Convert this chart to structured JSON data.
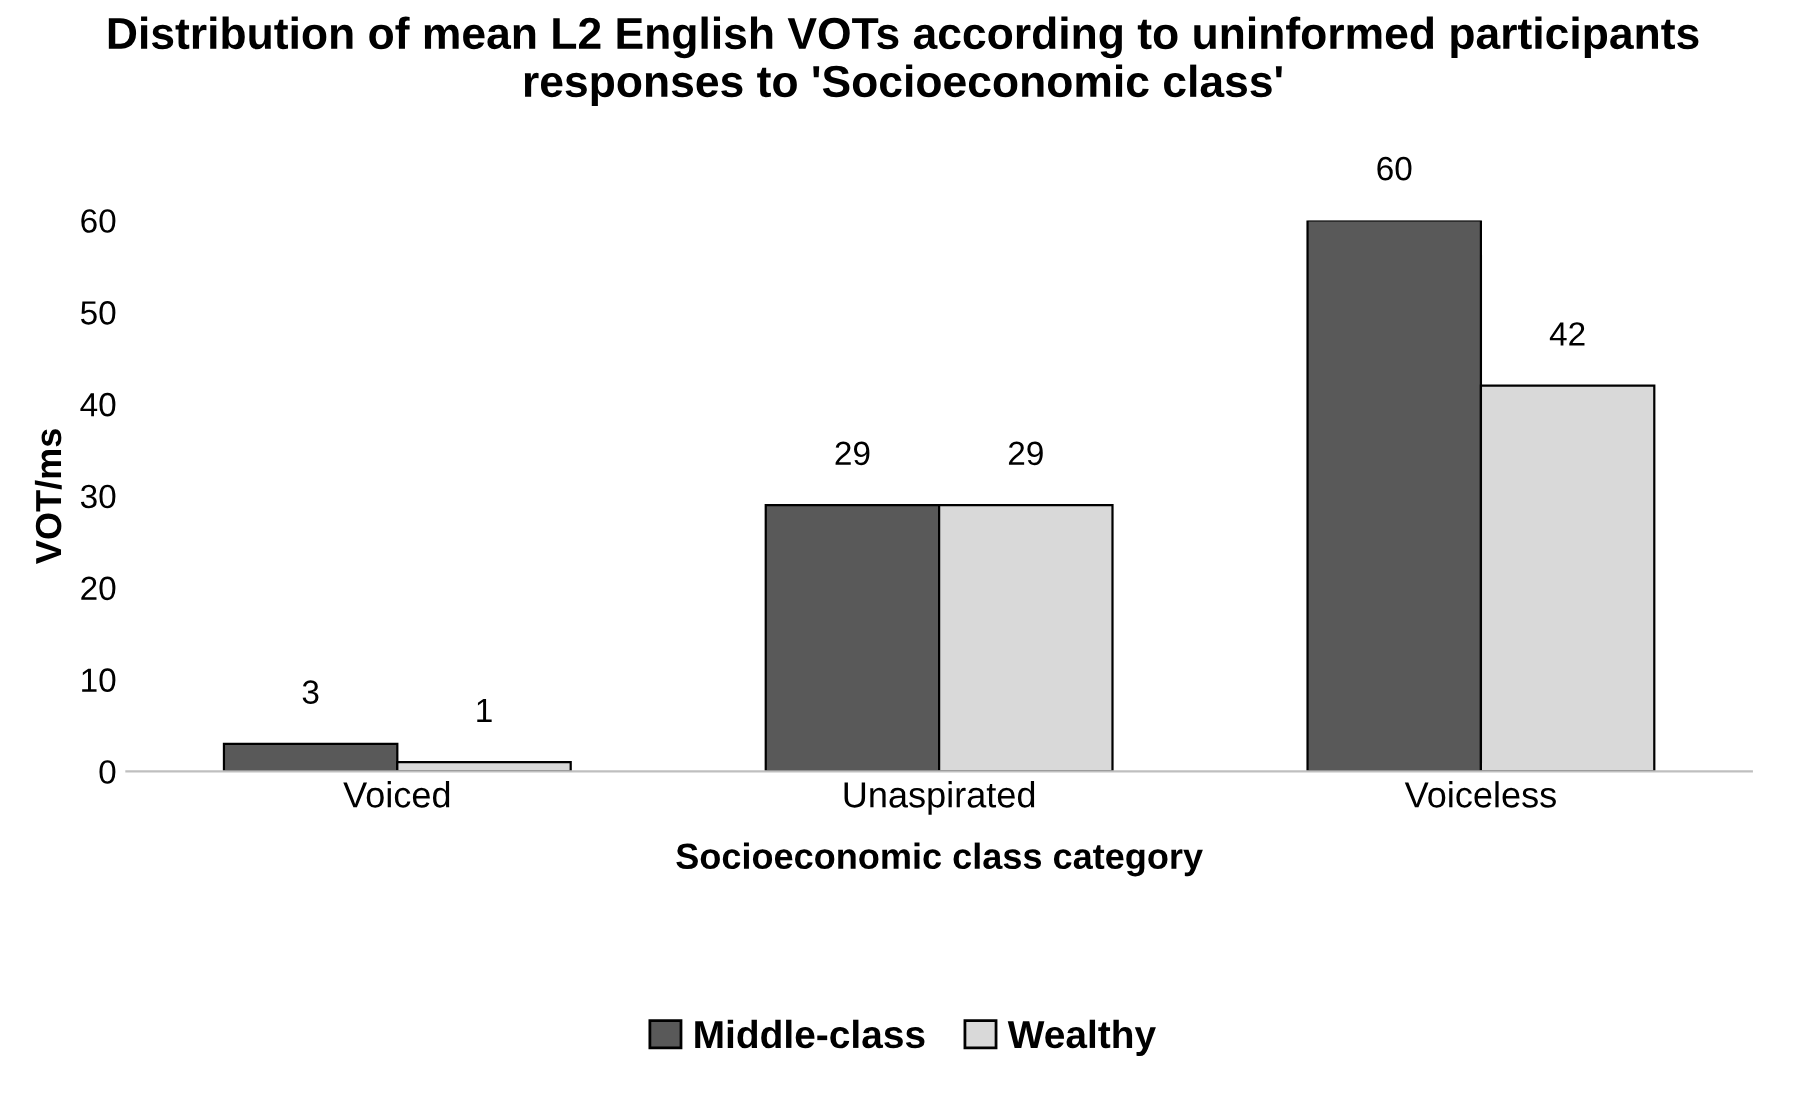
{
  "chart_data": {
    "type": "bar",
    "title": "Distribution of mean L2 English VOTs according to uninformed participants responses to 'Socioeconomic class'",
    "xlabel": "Socioeconomic class category",
    "ylabel": "VOT/ms",
    "categories": [
      "Voiced",
      "Unaspirated",
      "Voiceless"
    ],
    "series": [
      {
        "name": "Middle-class",
        "color": "#595959",
        "values": [
          3,
          29,
          60
        ]
      },
      {
        "name": "Wealthy",
        "color": "#d9d9d9",
        "values": [
          1,
          29,
          42
        ]
      }
    ],
    "ylim": [
      0,
      60
    ],
    "yticks": [
      0,
      10,
      20,
      30,
      40,
      50,
      60
    ],
    "grid": false,
    "legend": "bottom",
    "data_labels": true
  }
}
